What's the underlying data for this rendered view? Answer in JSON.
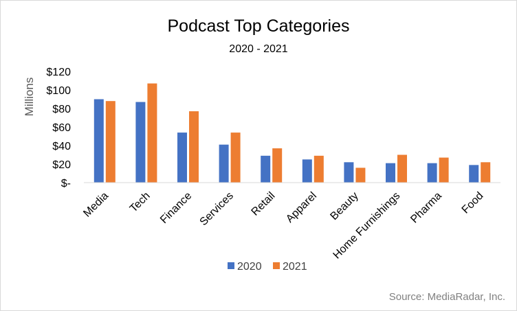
{
  "chart_data": {
    "type": "bar",
    "title": "Podcast Top Categories",
    "subtitle": "2020 - 2021",
    "ylabel": "Millions",
    "xlabel": "",
    "ylim": [
      0,
      120
    ],
    "yticks": [
      0,
      20,
      40,
      60,
      80,
      100,
      120
    ],
    "ytick_labels": [
      "$-",
      "$20",
      "$40",
      "$60",
      "$80",
      "$100",
      "$120"
    ],
    "grid": false,
    "legend_position": "bottom",
    "categories": [
      "Media",
      "Tech",
      "Finance",
      "Services",
      "Retail",
      "Apparel",
      "Beauty",
      "Home Furnishings",
      "Pharma",
      "Food"
    ],
    "series": [
      {
        "name": "2020",
        "color": "#4472C4",
        "values": [
          90,
          87,
          54,
          41,
          29,
          25,
          22,
          21,
          21,
          19
        ]
      },
      {
        "name": "2021",
        "color": "#ED7D31",
        "values": [
          88,
          107,
          77,
          54,
          37,
          29,
          16,
          30,
          27,
          22
        ]
      }
    ],
    "source": "Source: MediaRadar, Inc."
  }
}
